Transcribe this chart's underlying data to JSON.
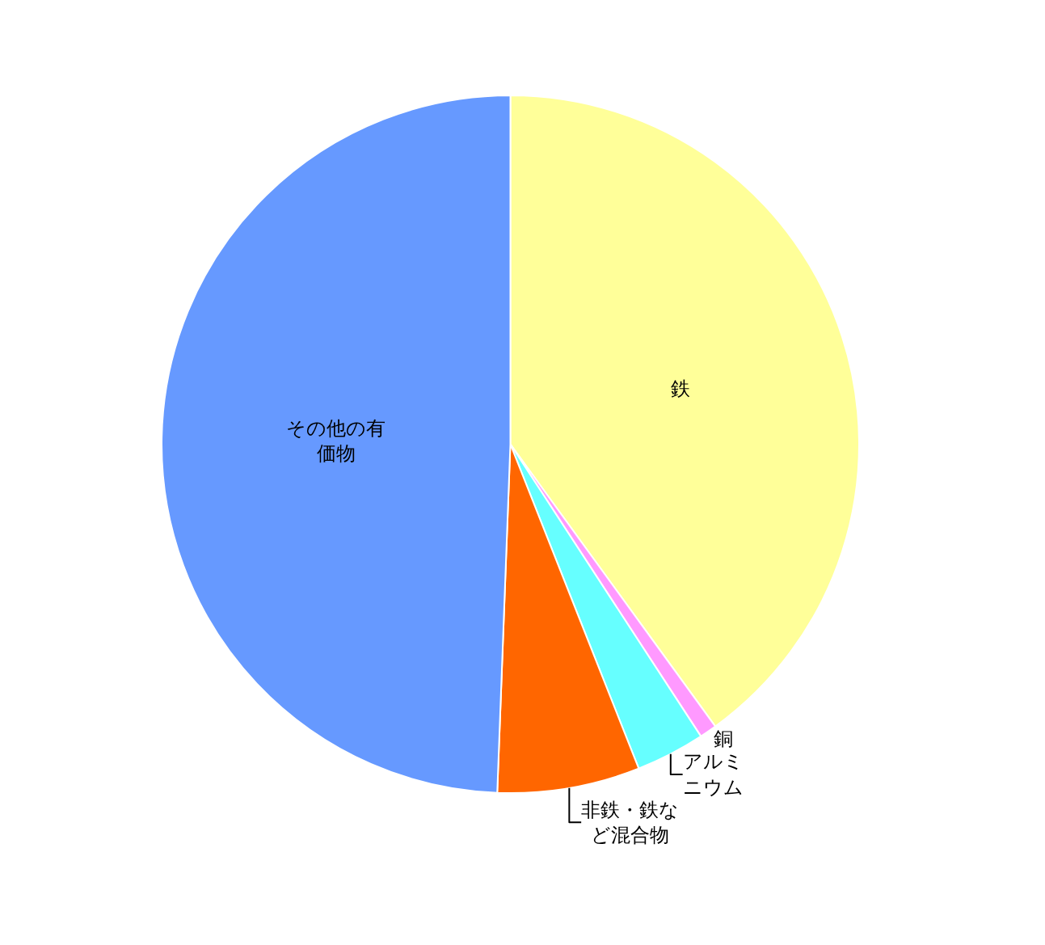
{
  "chart_data": {
    "type": "pie",
    "categories": [
      "鉄",
      "銅",
      "アルミニウム",
      "非鉄・鉄など混合物",
      "その他の有価物"
    ],
    "values": [
      40,
      0.8,
      3.2,
      6.6,
      49.4
    ],
    "colors": [
      "#ffff99",
      "#ff99ff",
      "#66ffff",
      "#ff6600",
      "#6699ff"
    ],
    "legend": false
  }
}
